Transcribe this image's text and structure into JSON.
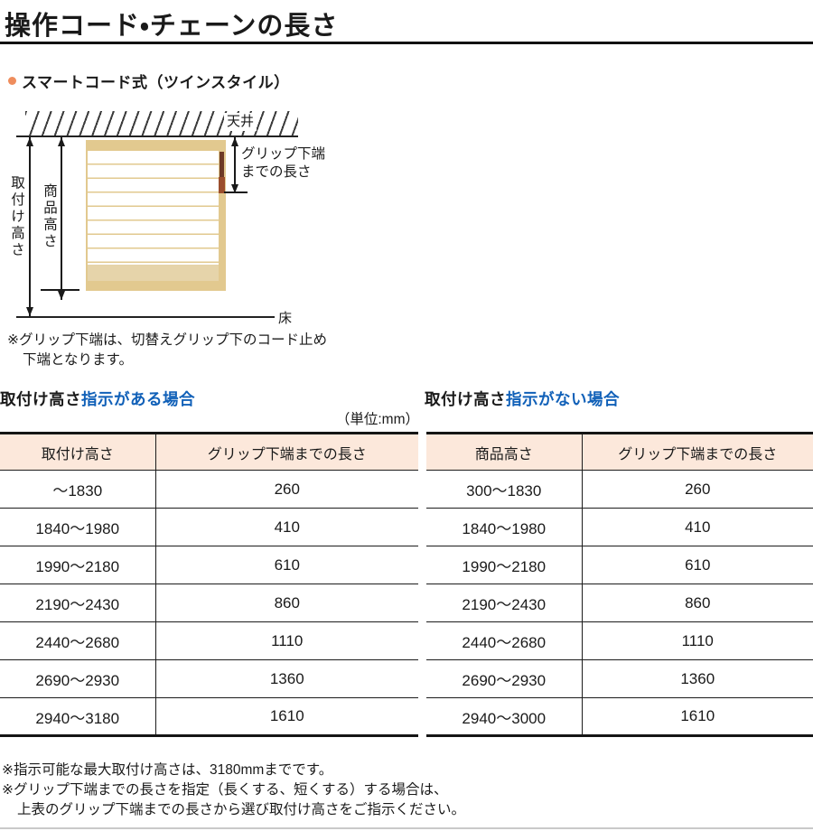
{
  "header": {
    "title": "操作コード・チェーンの長さ",
    "subtitle": "スマートコード式（ツインスタイル）"
  },
  "diagram": {
    "ceiling_label": "天井",
    "floor_label": "床",
    "install_height_label": "取付け高さ",
    "product_height_label": "商品高さ",
    "grip_label_line1": "グリップ下端",
    "grip_label_line2": "までの長さ",
    "note_line1": "※グリップ下端は、切替えグリップ下のコード止め",
    "note_line2": "下端となります。"
  },
  "unit_label": "（単位:mm）",
  "left_table": {
    "heading_black": "取付け高さ",
    "heading_blue": "指示がある場合",
    "columns": [
      "取付け高さ",
      "グリップ下端までの長さ"
    ],
    "rows": [
      [
        "～1830",
        "260"
      ],
      [
        "1840～1980",
        "410"
      ],
      [
        "1990～2180",
        "610"
      ],
      [
        "2190～2430",
        "860"
      ],
      [
        "2440～2680",
        "1110"
      ],
      [
        "2690～2930",
        "1360"
      ],
      [
        "2940～3180",
        "1610"
      ]
    ]
  },
  "right_table": {
    "heading_black": "取付け高さ",
    "heading_blue": "指示がない場合",
    "columns": [
      "商品高さ",
      "グリップ下端までの長さ"
    ],
    "rows": [
      [
        "300～1830",
        "260"
      ],
      [
        "1840～1980",
        "410"
      ],
      [
        "1990～2180",
        "610"
      ],
      [
        "2190～2430",
        "860"
      ],
      [
        "2440～2680",
        "1110"
      ],
      [
        "2690～2930",
        "1360"
      ],
      [
        "2940～3000",
        "1610"
      ]
    ]
  },
  "footnotes": [
    "※指示可能な最大取付け高さは、3180mmまでです。",
    "※グリップ下端までの長さを指定（長くする、短くする）する場合は、",
    "上表のグリップ下端までの長さから選び取付け高さをご指示ください。"
  ],
  "colors": {
    "accent_blue": "#1060b8",
    "bullet_orange": "#ef8d5d",
    "table_header_bg": "#fce8db",
    "rail_tan": "#e2c98f",
    "band_beige": "#e6d4aa",
    "grip_dark": "#6e3a27",
    "grip_brown": "#9b4e2d"
  }
}
